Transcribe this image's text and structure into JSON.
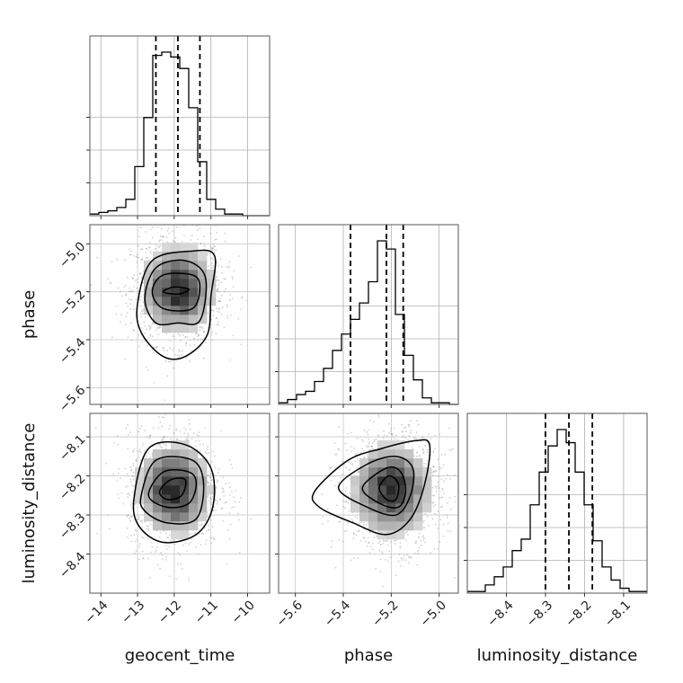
{
  "chart_data": {
    "type": "corner",
    "grid": true,
    "parameters": [
      {
        "name": "geocent_time",
        "range": [
          -14.3,
          -9.4
        ],
        "ticks": [
          -14,
          -13,
          -12,
          -11,
          -10
        ],
        "tick_labels": [
          "−14",
          "−13",
          "−12",
          "−11",
          "−10"
        ],
        "quantiles": [
          -12.5,
          -11.9,
          -11.3
        ],
        "histogram": {
          "bin_start": -14.3,
          "bin_width": 0.245,
          "counts": [
            1,
            2,
            3,
            5,
            10,
            30,
            60,
            98,
            100,
            97,
            90,
            66,
            33,
            10,
            4,
            1,
            1,
            0,
            0,
            0
          ]
        }
      },
      {
        "name": "phase",
        "range": [
          -5.67,
          -4.92
        ],
        "ticks": [
          -5.6,
          -5.4,
          -5.2,
          -5.0
        ],
        "tick_labels": [
          "−5.6",
          "−5.4",
          "−5.2",
          "−5.0"
        ],
        "quantiles": [
          -5.37,
          -5.22,
          -5.15
        ],
        "histogram": {
          "bin_start": -5.67,
          "bin_width": 0.0375,
          "counts": [
            1,
            3,
            6,
            8,
            14,
            22,
            33,
            43,
            52,
            62,
            75,
            100,
            95,
            55,
            30,
            15,
            4,
            1,
            1,
            0
          ]
        }
      },
      {
        "name": "luminosity_distance",
        "range": [
          -8.5,
          -8.04
        ],
        "ticks": [
          -8.4,
          -8.3,
          -8.2,
          -8.1
        ],
        "tick_labels": [
          "−8.4",
          "−8.3",
          "−8.2",
          "−8.1"
        ],
        "quantiles": [
          -8.3,
          -8.24,
          -8.18
        ],
        "histogram": {
          "bin_start": -8.5,
          "bin_width": 0.023,
          "counts": [
            1,
            1,
            5,
            10,
            16,
            26,
            33,
            54,
            74,
            90,
            100,
            92,
            74,
            54,
            32,
            16,
            8,
            3,
            1,
            1
          ]
        }
      }
    ],
    "density_pairs": [
      {
        "x": "geocent_time",
        "y": "phase",
        "center": [
          -11.9,
          -5.19
        ],
        "spread": [
          0.55,
          0.1
        ],
        "contours": [
          [
            [
              -12.3,
              -5.2
            ],
            [
              -12.0,
              -5.18
            ],
            [
              -11.6,
              -5.19
            ],
            [
              -11.9,
              -5.21
            ],
            [
              -12.3,
              -5.2
            ]
          ],
          [
            [
              -12.6,
              -5.2
            ],
            [
              -12.3,
              -5.13
            ],
            [
              -11.5,
              -5.13
            ],
            [
              -11.3,
              -5.18
            ],
            [
              -11.5,
              -5.27
            ],
            [
              -12.3,
              -5.27
            ],
            [
              -12.6,
              -5.2
            ]
          ],
          [
            [
              -12.8,
              -5.23
            ],
            [
              -12.5,
              -5.1
            ],
            [
              -11.7,
              -5.07
            ],
            [
              -11.15,
              -5.14
            ],
            [
              -11.3,
              -5.32
            ],
            [
              -11.9,
              -5.33
            ],
            [
              -12.5,
              -5.33
            ],
            [
              -12.8,
              -5.23
            ]
          ],
          [
            [
              -13.0,
              -5.25
            ],
            [
              -12.6,
              -5.07
            ],
            [
              -11.5,
              -5.03
            ],
            [
              -10.9,
              -5.05
            ],
            [
              -11.0,
              -5.22
            ],
            [
              -11.1,
              -5.38
            ],
            [
              -11.7,
              -5.47
            ],
            [
              -12.3,
              -5.47
            ],
            [
              -12.9,
              -5.37
            ],
            [
              -13.0,
              -5.25
            ]
          ]
        ]
      },
      {
        "x": "geocent_time",
        "y": "luminosity_distance",
        "center": [
          -12.0,
          -8.235
        ],
        "spread": [
          0.55,
          0.065
        ],
        "contours": [
          [
            [
              -12.4,
              -8.24
            ],
            [
              -12.1,
              -8.21
            ],
            [
              -11.7,
              -8.21
            ],
            [
              -11.8,
              -8.25
            ],
            [
              -12.2,
              -8.26
            ],
            [
              -12.4,
              -8.24
            ]
          ],
          [
            [
              -12.7,
              -8.25
            ],
            [
              -12.3,
              -8.19
            ],
            [
              -11.6,
              -8.19
            ],
            [
              -11.4,
              -8.22
            ],
            [
              -11.6,
              -8.27
            ],
            [
              -12.2,
              -8.28
            ],
            [
              -12.7,
              -8.25
            ]
          ],
          [
            [
              -12.9,
              -8.25
            ],
            [
              -12.5,
              -8.16
            ],
            [
              -11.5,
              -8.16
            ],
            [
              -11.2,
              -8.22
            ],
            [
              -11.4,
              -8.31
            ],
            [
              -12.2,
              -8.32
            ],
            [
              -12.8,
              -8.29
            ],
            [
              -12.9,
              -8.25
            ]
          ],
          [
            [
              -13.1,
              -8.26
            ],
            [
              -12.7,
              -8.13
            ],
            [
              -11.7,
              -8.12
            ],
            [
              -11.0,
              -8.18
            ],
            [
              -10.95,
              -8.28
            ],
            [
              -11.4,
              -8.35
            ],
            [
              -12.3,
              -8.37
            ],
            [
              -12.95,
              -8.33
            ],
            [
              -13.1,
              -8.26
            ]
          ]
        ]
      },
      {
        "x": "phase",
        "y": "luminosity_distance",
        "center": [
          -5.2,
          -8.235
        ],
        "spread": [
          0.09,
          0.065
        ],
        "contours": [
          [
            [
              -5.25,
              -8.23
            ],
            [
              -5.21,
              -8.2
            ],
            [
              -5.17,
              -8.22
            ],
            [
              -5.18,
              -8.26
            ],
            [
              -5.22,
              -8.26
            ],
            [
              -5.25,
              -8.23
            ]
          ],
          [
            [
              -5.32,
              -8.23
            ],
            [
              -5.22,
              -8.18
            ],
            [
              -5.16,
              -8.19
            ],
            [
              -5.14,
              -8.24
            ],
            [
              -5.17,
              -8.28
            ],
            [
              -5.25,
              -8.27
            ],
            [
              -5.32,
              -8.23
            ]
          ],
          [
            [
              -5.42,
              -8.23
            ],
            [
              -5.3,
              -8.17
            ],
            [
              -5.18,
              -8.15
            ],
            [
              -5.11,
              -8.18
            ],
            [
              -5.12,
              -8.25
            ],
            [
              -5.18,
              -8.3
            ],
            [
              -5.3,
              -8.28
            ],
            [
              -5.42,
              -8.23
            ]
          ],
          [
            [
              -5.52,
              -8.24
            ],
            [
              -5.38,
              -8.16
            ],
            [
              -5.24,
              -8.13
            ],
            [
              -5.1,
              -8.11
            ],
            [
              -5.04,
              -8.12
            ],
            [
              -5.06,
              -8.22
            ],
            [
              -5.12,
              -8.31
            ],
            [
              -5.22,
              -8.35
            ],
            [
              -5.36,
              -8.32
            ],
            [
              -5.5,
              -8.28
            ],
            [
              -5.52,
              -8.24
            ]
          ]
        ]
      }
    ]
  }
}
